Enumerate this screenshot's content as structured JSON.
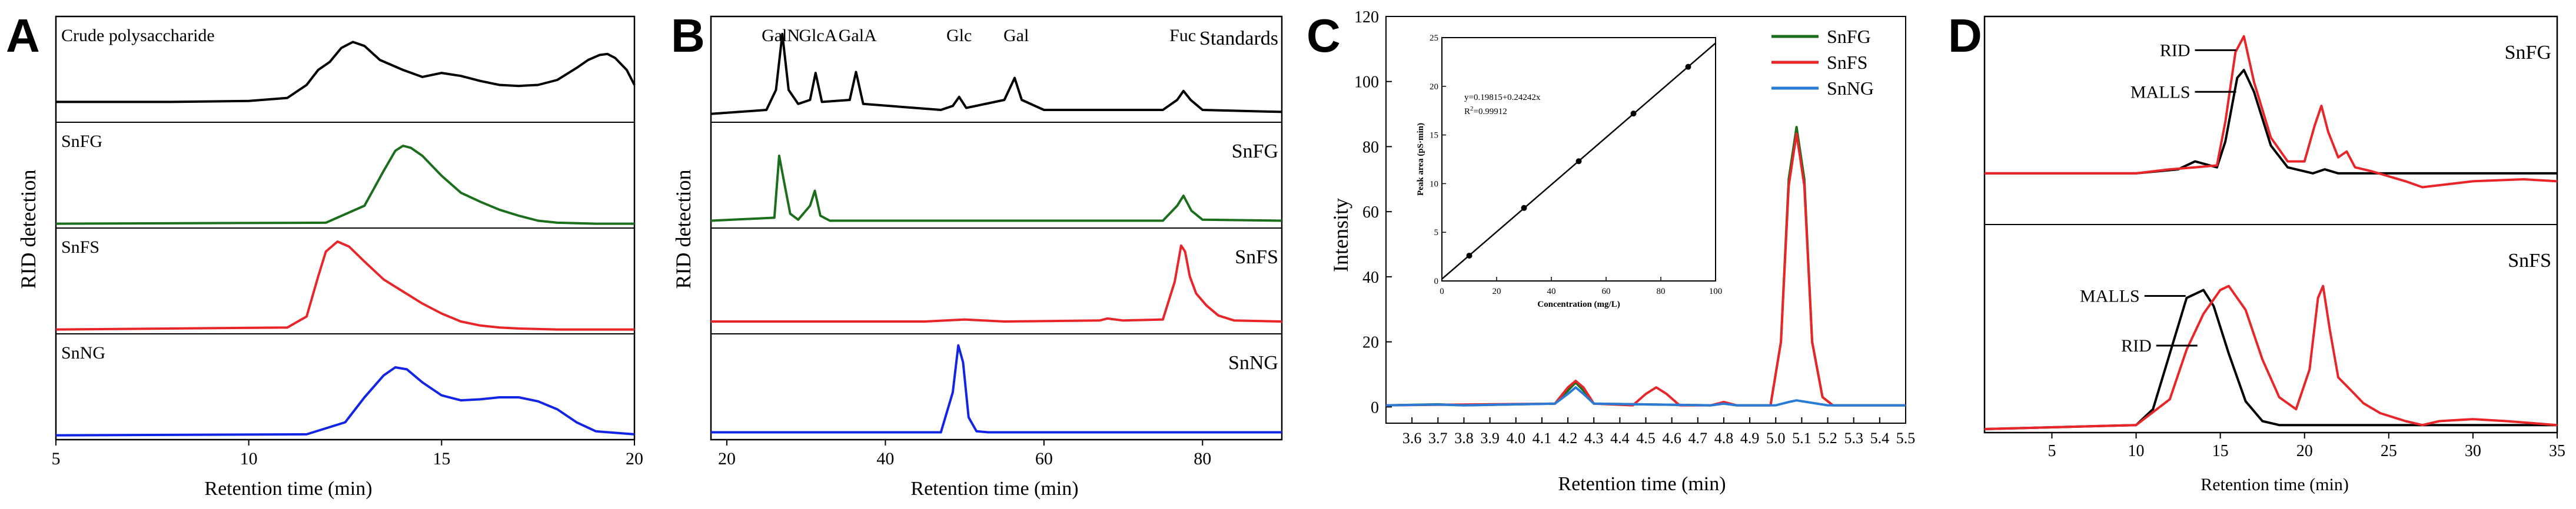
{
  "figure": {
    "panel_letters": [
      "A",
      "B",
      "C",
      "D"
    ]
  },
  "colors": {
    "black": "#000000",
    "green": "#1b6e1b",
    "red": "#e8262a",
    "blue": "#1224e6",
    "cyan": "#2a7bd6"
  },
  "chart_data": [
    {
      "panel": "A",
      "type": "line",
      "layout": "stacked chromatograms",
      "xlabel": "Retention time (min)",
      "ylabel": "RID detection",
      "xlim": [
        5,
        20
      ],
      "x_ticks": [
        5,
        10,
        15,
        20
      ],
      "tracks": [
        {
          "label": "Crude polysaccharide",
          "color": "#000000",
          "ylim": [
            0,
            1
          ],
          "x": [
            5,
            8,
            10,
            11,
            11.5,
            11.8,
            12.1,
            12.4,
            12.7,
            13.0,
            13.4,
            14.0,
            14.5,
            15.0,
            15.5,
            16.0,
            16.5,
            17.0,
            17.5,
            18.0,
            18.5,
            18.8,
            19.1,
            19.3,
            19.5,
            19.8,
            20
          ],
          "y": [
            0.18,
            0.18,
            0.19,
            0.22,
            0.35,
            0.5,
            0.58,
            0.72,
            0.78,
            0.74,
            0.6,
            0.5,
            0.43,
            0.47,
            0.44,
            0.39,
            0.35,
            0.34,
            0.35,
            0.4,
            0.52,
            0.6,
            0.65,
            0.66,
            0.62,
            0.5,
            0.35
          ]
        },
        {
          "label": "SnFG",
          "color": "#1b6e1b",
          "ylim": [
            0,
            1
          ],
          "x": [
            5,
            12,
            13,
            13.5,
            13.8,
            14.0,
            14.2,
            14.5,
            15.0,
            15.5,
            16.0,
            16.5,
            17.0,
            17.5,
            18.0,
            19.0,
            20
          ],
          "y": [
            0.02,
            0.03,
            0.2,
            0.55,
            0.75,
            0.8,
            0.78,
            0.7,
            0.5,
            0.33,
            0.24,
            0.16,
            0.1,
            0.05,
            0.03,
            0.02,
            0.02
          ]
        },
        {
          "label": "SnFS",
          "color": "#e8262a",
          "ylim": [
            0,
            1
          ],
          "x": [
            5,
            11,
            11.5,
            11.8,
            12.0,
            12.3,
            12.6,
            13.0,
            13.5,
            14.0,
            14.5,
            15.0,
            15.5,
            16.0,
            16.5,
            17.0,
            18.0,
            19.0,
            20
          ],
          "y": [
            0.02,
            0.04,
            0.15,
            0.55,
            0.8,
            0.9,
            0.85,
            0.7,
            0.52,
            0.4,
            0.28,
            0.18,
            0.1,
            0.06,
            0.04,
            0.03,
            0.02,
            0.02,
            0.02
          ]
        },
        {
          "label": "SnNG",
          "color": "#1224e6",
          "ylim": [
            0,
            1
          ],
          "x": [
            5,
            11.5,
            12.5,
            13.0,
            13.5,
            13.8,
            14.1,
            14.5,
            15.0,
            15.5,
            16.0,
            16.5,
            17.0,
            17.5,
            18.0,
            18.5,
            19.0,
            20
          ],
          "y": [
            0.02,
            0.03,
            0.15,
            0.4,
            0.62,
            0.7,
            0.68,
            0.55,
            0.42,
            0.37,
            0.38,
            0.4,
            0.4,
            0.36,
            0.28,
            0.15,
            0.06,
            0.03
          ]
        }
      ]
    },
    {
      "panel": "B",
      "type": "line",
      "layout": "stacked chromatograms",
      "xlabel": "Retention time (min)",
      "ylabel": "RID detection",
      "xlim": [
        18,
        90
      ],
      "x_ticks": [
        20,
        40,
        60,
        80
      ],
      "tracks": [
        {
          "label": "Standards",
          "color": "#000000",
          "ylim": [
            0,
            1
          ],
          "x": [
            18,
            25,
            26.2,
            27.0,
            27.8,
            29,
            30.5,
            31.2,
            32.0,
            35.5,
            36.3,
            37.2,
            47,
            48.5,
            49.3,
            50.2,
            55,
            56.3,
            57.2,
            60,
            75,
            76.8,
            77.6,
            78.5,
            80,
            90
          ],
          "y": [
            0.06,
            0.1,
            0.3,
            0.86,
            0.3,
            0.16,
            0.2,
            0.47,
            0.18,
            0.2,
            0.48,
            0.16,
            0.1,
            0.14,
            0.23,
            0.12,
            0.2,
            0.42,
            0.2,
            0.1,
            0.1,
            0.2,
            0.29,
            0.2,
            0.1,
            0.08
          ]
        },
        {
          "label": "SnFG",
          "color": "#1b6e1b",
          "ylim": [
            0,
            1
          ],
          "x": [
            18,
            26,
            26.6,
            27.2,
            28.0,
            29,
            30.5,
            31.1,
            31.8,
            33,
            40,
            75,
            76.8,
            77.6,
            78.6,
            80,
            90
          ],
          "y": [
            0.05,
            0.08,
            0.7,
            0.45,
            0.12,
            0.06,
            0.2,
            0.35,
            0.1,
            0.05,
            0.05,
            0.05,
            0.2,
            0.3,
            0.15,
            0.06,
            0.05
          ]
        },
        {
          "label": "SnFS",
          "color": "#e8262a",
          "ylim": [
            0,
            1
          ],
          "x": [
            18,
            45,
            50,
            55,
            67,
            68,
            70,
            75,
            76.5,
            77.3,
            77.8,
            78.4,
            79.2,
            80.5,
            82,
            84,
            90
          ],
          "y": [
            0.1,
            0.1,
            0.12,
            0.1,
            0.11,
            0.13,
            0.11,
            0.12,
            0.5,
            0.86,
            0.8,
            0.55,
            0.38,
            0.26,
            0.16,
            0.11,
            0.1
          ]
        },
        {
          "label": "SnNG",
          "color": "#1224e6",
          "ylim": [
            0,
            1
          ],
          "x": [
            18,
            47,
            48.5,
            49.2,
            49.8,
            50.5,
            51.5,
            53,
            90
          ],
          "y": [
            0.05,
            0.05,
            0.45,
            0.92,
            0.75,
            0.2,
            0.06,
            0.05,
            0.05
          ]
        }
      ],
      "peak_labels": [
        {
          "text": "GalN",
          "x": 26.8
        },
        {
          "text": "GlcA",
          "x": 31.5
        },
        {
          "text": "GalA",
          "x": 36.5
        },
        {
          "text": "Glc",
          "x": 49.3
        },
        {
          "text": "Gal",
          "x": 56.5
        },
        {
          "text": "Fuc",
          "x": 77.5
        }
      ]
    },
    {
      "panel": "C",
      "type": "line",
      "xlabel": "Retention time (min)",
      "ylabel": "Intensity",
      "xlim": [
        3.5,
        5.5
      ],
      "ylim": [
        -5,
        120
      ],
      "x_ticks": [
        "3.6",
        "3.7",
        "3.8",
        "3.9",
        "4.0",
        "4.1",
        "4.2",
        "4.3",
        "4.4",
        "4.5",
        "4.6",
        "4.7",
        "4.8",
        "4.9",
        "5.0",
        "5.1",
        "5.2",
        "5.3",
        "5.4",
        "5.5"
      ],
      "y_ticks": [
        0,
        20,
        40,
        60,
        80,
        100,
        120
      ],
      "legend": {
        "position": "top-right",
        "entries": [
          "SnFG",
          "SnFS",
          "SnNG"
        ]
      },
      "series": [
        {
          "name": "SnFG",
          "color": "#1b6e1b",
          "x": [
            3.5,
            3.7,
            3.8,
            4.15,
            4.2,
            4.23,
            4.26,
            4.3,
            4.75,
            4.8,
            4.85,
            4.98,
            5.02,
            5.05,
            5.08,
            5.11,
            5.14,
            5.18,
            5.22,
            5.5
          ],
          "y": [
            0.5,
            0.8,
            0.5,
            1,
            5,
            7.5,
            5,
            1,
            0.5,
            1.2,
            0.5,
            0.5,
            20,
            70,
            86,
            70,
            20,
            3,
            0.5,
            0.5
          ]
        },
        {
          "name": "SnFS",
          "color": "#e8262a",
          "x": [
            3.5,
            4.15,
            4.2,
            4.23,
            4.26,
            4.3,
            4.45,
            4.5,
            4.54,
            4.58,
            4.63,
            4.75,
            4.8,
            4.85,
            4.98,
            5.02,
            5.05,
            5.08,
            5.11,
            5.14,
            5.18,
            5.22,
            5.5
          ],
          "y": [
            0.5,
            1,
            6,
            8,
            6,
            1,
            0.5,
            4,
            6,
            4,
            0.5,
            0.5,
            1.5,
            0.5,
            0.5,
            20,
            68,
            84,
            68,
            20,
            3,
            0.5,
            0.5
          ]
        },
        {
          "name": "SnNG",
          "color": "#2a7bd6",
          "x": [
            3.5,
            3.7,
            3.8,
            4.15,
            4.2,
            4.23,
            4.26,
            4.3,
            4.75,
            4.8,
            4.85,
            5.0,
            5.05,
            5.08,
            5.12,
            5.2,
            5.5
          ],
          "y": [
            0.5,
            0.7,
            0.5,
            1,
            4,
            6,
            4,
            1,
            0.5,
            1,
            0.5,
            0.5,
            1.5,
            2,
            1.5,
            0.5,
            0.5
          ]
        }
      ],
      "inset": {
        "type": "scatter",
        "xlabel": "Concentration (mg/L)",
        "ylabel": "Peak area (pS·min)",
        "xlim": [
          0,
          100
        ],
        "ylim": [
          0,
          25
        ],
        "x_ticks": [
          0,
          20,
          40,
          60,
          80,
          100
        ],
        "y_ticks": [
          0,
          5,
          10,
          15,
          20,
          25
        ],
        "equation": "y=0.19815+0.24242x",
        "r2_label": "R",
        "r2_exponent": "2",
        "r2_value": "=0.99912",
        "x": [
          10,
          30,
          50,
          70,
          90
        ],
        "y": [
          2.6,
          7.5,
          12.3,
          17.2,
          22.0
        ],
        "fit": {
          "intercept": 0.19815,
          "slope": 0.24242,
          "x_range": [
            0,
            100
          ]
        }
      }
    },
    {
      "panel": "D",
      "type": "line",
      "layout": "stacked chromatograms",
      "xlabel": "Retention time (min)",
      "xlim": [
        1,
        35
      ],
      "x_ticks": [
        5,
        10,
        15,
        20,
        25,
        30,
        35
      ],
      "tracks": [
        {
          "label": "SnFG",
          "ylim": [
            0,
            1
          ],
          "annotations": [
            {
              "text": "RID",
              "x": 16.5,
              "y": 0.86
            },
            {
              "text": "MALLS",
              "x": 16.5,
              "y": 0.65
            }
          ],
          "series": [
            {
              "name": "MALLS",
              "color": "#000000",
              "x": [
                1,
                10,
                12.5,
                13.5,
                14.8,
                15.3,
                16.0,
                16.4,
                17.0,
                18.0,
                19.0,
                20.5,
                21.2,
                22.0,
                23.0,
                26,
                30,
                35
              ],
              "y": [
                0.24,
                0.24,
                0.26,
                0.3,
                0.27,
                0.4,
                0.72,
                0.76,
                0.65,
                0.38,
                0.27,
                0.24,
                0.26,
                0.24,
                0.24,
                0.24,
                0.24,
                0.24
              ]
            },
            {
              "name": "RID",
              "color": "#e8262a",
              "x": [
                1,
                10,
                12,
                13.5,
                14.8,
                15.3,
                15.9,
                16.4,
                17.0,
                18.0,
                19.0,
                20.0,
                20.6,
                21.0,
                21.4,
                22.0,
                22.5,
                23.0,
                24.0,
                26.0,
                27.0,
                30.0,
                33.0,
                35
              ],
              "y": [
                0.24,
                0.24,
                0.26,
                0.27,
                0.28,
                0.5,
                0.85,
                0.93,
                0.7,
                0.42,
                0.3,
                0.3,
                0.48,
                0.58,
                0.45,
                0.32,
                0.35,
                0.27,
                0.25,
                0.2,
                0.17,
                0.2,
                0.21,
                0.2
              ]
            }
          ]
        },
        {
          "label": "SnFS",
          "ylim": [
            0,
            1
          ],
          "annotations": [
            {
              "text": "MALLS",
              "x": 13.5,
              "y": 0.67
            },
            {
              "text": "RID",
              "x": 14.2,
              "y": 0.42
            }
          ],
          "series": [
            {
              "name": "MALLS",
              "color": "#000000",
              "x": [
                1,
                10,
                11.0,
                12.0,
                13.0,
                14.0,
                14.6,
                15.5,
                16.5,
                17.5,
                18.5,
                20,
                35
              ],
              "y": [
                0.0,
                0.02,
                0.1,
                0.38,
                0.66,
                0.7,
                0.62,
                0.38,
                0.14,
                0.04,
                0.02,
                0.02,
                0.02
              ]
            },
            {
              "name": "RID",
              "color": "#e8262a",
              "x": [
                1,
                10,
                12.0,
                13.0,
                14.0,
                15.0,
                15.5,
                16.5,
                17.5,
                18.5,
                19.5,
                20.3,
                20.8,
                21.1,
                21.5,
                22.0,
                22.7,
                23.5,
                24.5,
                26.0,
                27.0,
                28.0,
                30.0,
                32.0,
                35
              ],
              "y": [
                0.0,
                0.02,
                0.15,
                0.4,
                0.58,
                0.7,
                0.72,
                0.6,
                0.35,
                0.16,
                0.1,
                0.3,
                0.66,
                0.72,
                0.5,
                0.26,
                0.2,
                0.13,
                0.08,
                0.04,
                0.02,
                0.04,
                0.05,
                0.04,
                0.02
              ]
            }
          ]
        }
      ]
    }
  ]
}
